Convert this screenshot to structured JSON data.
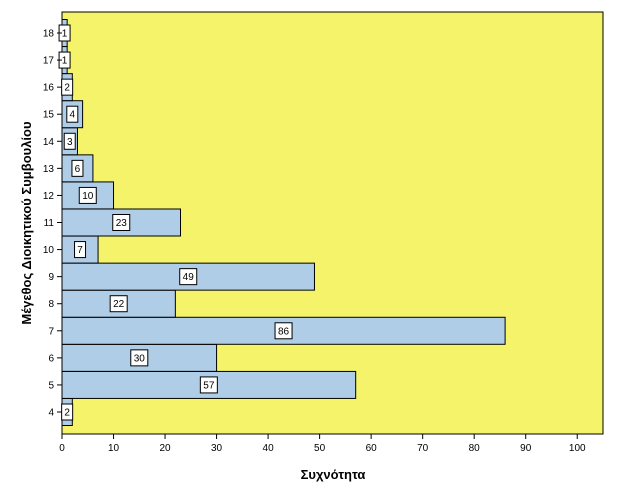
{
  "chart_data": {
    "type": "bar",
    "orientation": "horizontal",
    "categories": [
      "4",
      "5",
      "6",
      "7",
      "8",
      "9",
      "10",
      "11",
      "12",
      "13",
      "14",
      "15",
      "16",
      "17",
      "18"
    ],
    "values": [
      2,
      57,
      30,
      86,
      22,
      49,
      7,
      23,
      10,
      6,
      3,
      4,
      2,
      1,
      1
    ],
    "xlabel": "Συχνότητα",
    "ylabel": "Μέγεθος Διοικητικού Συμβουλίου",
    "xlim": [
      0,
      105
    ],
    "xticks": [
      0,
      10,
      20,
      30,
      40,
      50,
      60,
      70,
      80,
      90,
      100
    ],
    "grid": false,
    "colors": {
      "plot_background": "#f5f36a",
      "bar_fill": "#b0cde8",
      "bar_stroke": "#000000",
      "label_box_fill": "#ffffff"
    }
  }
}
